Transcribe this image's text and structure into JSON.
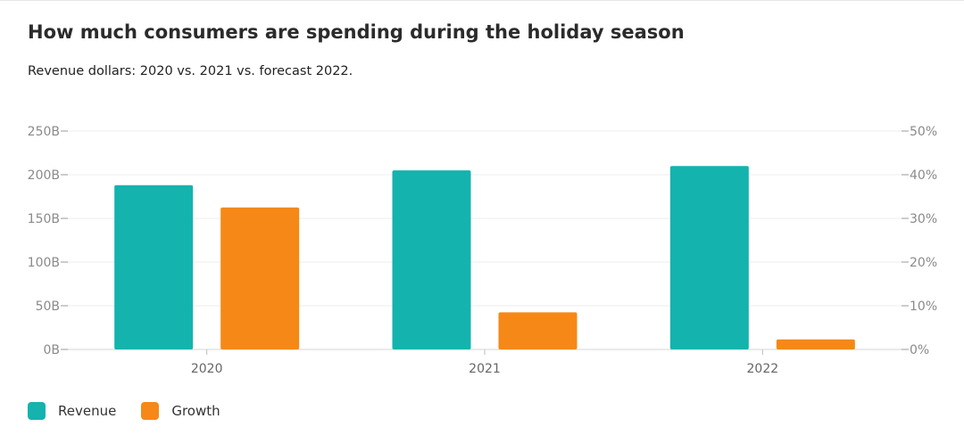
{
  "chart_data": {
    "type": "bar",
    "title": "How much consumers are spending during the holiday season",
    "subtitle": "Revenue dollars: 2020 vs. 2021 vs. forecast 2022.",
    "categories": [
      "2020",
      "2021",
      "2022"
    ],
    "series": [
      {
        "name": "Revenue",
        "axis": "left",
        "color": "#14b3ae",
        "values": [
          188,
          205,
          210
        ]
      },
      {
        "name": "Growth",
        "axis": "right",
        "color": "#f68817",
        "values": [
          32.5,
          8.5,
          2.3
        ]
      }
    ],
    "y_left": {
      "ylim": [
        0,
        250
      ],
      "ticks": [
        0,
        50,
        100,
        150,
        200,
        250
      ],
      "tick_labels": [
        "0B",
        "50B",
        "100B",
        "150B",
        "200B",
        "250B"
      ]
    },
    "y_right": {
      "ylim": [
        0,
        50
      ],
      "ticks": [
        0,
        10,
        20,
        30,
        40,
        50
      ],
      "tick_labels": [
        "0%",
        "10%",
        "20%",
        "30%",
        "40%",
        "50%"
      ]
    },
    "grid": true,
    "legend_position": "bottom-left"
  }
}
